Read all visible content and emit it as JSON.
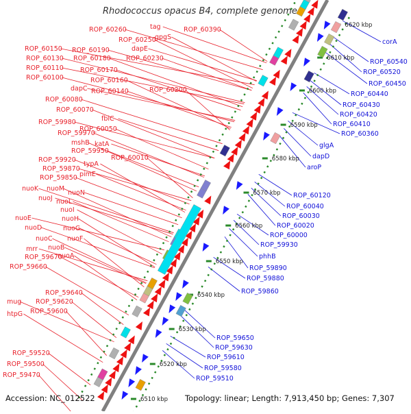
{
  "title": "Rhodococcus opacus B4, complete genome",
  "footer": {
    "accession": "Accession: NC_012522",
    "summary": "Topology: linear; Length: 7,913,450 bp; Genes: 7,307"
  },
  "colors": {
    "forward_label": "#e8202a",
    "reverse_label": "#1010d8",
    "backbone": "#808080",
    "tick": "#2a8a2a"
  },
  "axis": {
    "ticks": [
      {
        "label": "6510 kbp"
      },
      {
        "label": "6520 kbp"
      },
      {
        "label": "6530 kbp"
      },
      {
        "label": "6540 kbp"
      },
      {
        "label": "6550 kbp"
      },
      {
        "label": "6560 kbp"
      },
      {
        "label": "6570 kbp"
      },
      {
        "label": "6580 kbp"
      },
      {
        "label": "6590 kbp"
      },
      {
        "label": "6600 kbp"
      },
      {
        "label": "6610 kbp"
      },
      {
        "label": "6620 kbp"
      }
    ]
  },
  "forward_genes": [
    "ROP_60390",
    "tag",
    "ROP_60260",
    "gpgS",
    "ROP_60250",
    "dapE",
    "ROP_60150",
    "ROP_60190",
    "ROP_60130",
    "ROP_60180",
    "ROP_60230",
    "ROP_60110",
    "ROP_60170",
    "ROP_60100",
    "ROP_60160",
    "dapC",
    "ROP_60140",
    "ROP_60200",
    "ROP_60080",
    "ROP_60070",
    "fbiC",
    "ROP_59980",
    "ROP_60050",
    "ROP_59970",
    "mshB",
    "katA",
    "ROP_59950",
    "ROP_60010",
    "ROP_59920",
    "typA",
    "ROP_59870",
    "pimE",
    "ROP_59850",
    "nuoK",
    "nuoM",
    "nuoN",
    "nuoJ",
    "nuoL",
    "nuoI",
    "nuoH",
    "nuoE",
    "nuoG",
    "nuoD",
    "nuoC",
    "nuoF",
    "mrr",
    "nuoB",
    "ROP_59670",
    "nuoA",
    "ROP_59660",
    "ROP_59640",
    "ROP_59620",
    "mug",
    "ROP_59600",
    "htpG",
    "ROP_59520",
    "ROP_59500",
    "ROP_59470"
  ],
  "reverse_genes": [
    "corA",
    "ROP_60540",
    "ROP_60520",
    "ROP_60450",
    "ROP_60440",
    "ROP_60430",
    "ROP_60420",
    "ROP_60410",
    "ROP_60360",
    "glgA",
    "dapD",
    "aroP",
    "ROP_60120",
    "ROP_60040",
    "ROP_60030",
    "ROP_60020",
    "ROP_60000",
    "ROP_59930",
    "phhB",
    "ROP_59890",
    "ROP_59880",
    "ROP_59860",
    "ROP_59650",
    "ROP_59630",
    "ROP_59610",
    "ROP_59580",
    "ROP_59510"
  ]
}
